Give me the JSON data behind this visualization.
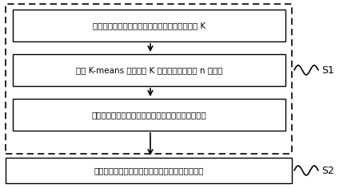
{
  "box1_text": "计算所输入的未知协议数据帧的种类数的近似值 K",
  "box2_text": "使用 K-means 算法指定 K 值进行聚类，得到 n 个类簇",
  "box3_text": "使用基于熵的类簇评估算法确定可信的单协议数据帧",
  "box4_text": "将分割好的单协议数据帧按地址分为点对点数据帧",
  "label_s1": "S1",
  "label_s2": "S2",
  "outer_dash_color": "#000000",
  "box_edge_color": "#000000",
  "box_fill_color": "#ffffff",
  "arrow_color": "#000000",
  "wave_color": "#000000",
  "text_color": "#000000",
  "font_size": 7.5,
  "label_font_size": 9,
  "fig_w": 4.54,
  "fig_h": 2.36,
  "dpi": 100
}
